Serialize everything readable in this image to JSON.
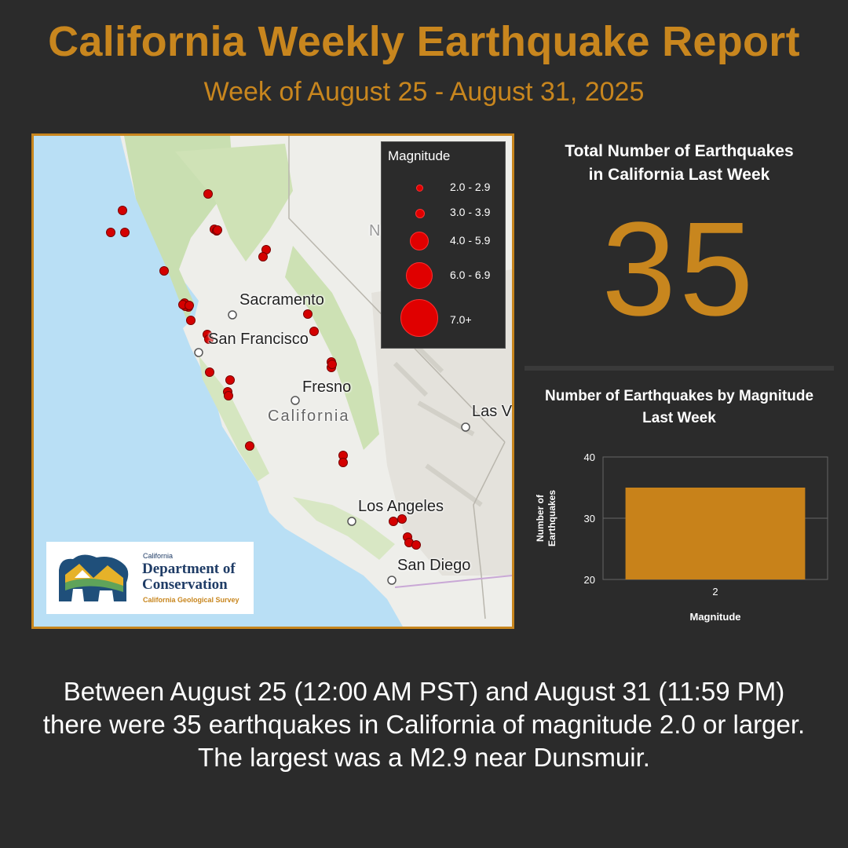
{
  "header": {
    "title": "California Weekly Earthquake Report",
    "subtitle": "Week of August 25 - August 31, 2025"
  },
  "map": {
    "places": {
      "sacramento": "Sacramento",
      "san_francisco": "San Francisco",
      "fresno": "Fresno",
      "california": "California",
      "las_vegas": "Las V",
      "los_angeles": "Los Angeles",
      "san_diego": "San Diego",
      "nevada_fragment": "N"
    },
    "legend": {
      "title": "Magnitude",
      "items": [
        "2.0 - 2.9",
        "3.0 - 3.9",
        "4.0 - 5.9",
        "6.0 - 6.9",
        "7.0+"
      ]
    },
    "quake_color": "#d40000",
    "logo": {
      "state": "California",
      "org_line1": "Department of",
      "org_line2": "Conservation",
      "division": "California Geological Survey"
    }
  },
  "stat": {
    "heading_line1": "Total Number of Earthquakes",
    "heading_line2": "in California Last Week",
    "value": "35"
  },
  "chart_heading": {
    "line1": "Number of Earthquakes by Magnitude",
    "line2": "Last Week"
  },
  "chart_data": {
    "type": "bar",
    "categories": [
      "2"
    ],
    "values": [
      35
    ],
    "xlabel": "Magnitude",
    "ylabel": "Number of Earthquakes",
    "ylim": [
      20,
      40
    ],
    "yticks": [
      20,
      30,
      40
    ],
    "grid": true,
    "bar_color": "#c8821a"
  },
  "footer": {
    "text": "Between August 25 (12:00 AM PST) and August 31 (11:59 PM) there were 35 earthquakes in California of magnitude 2.0 or larger. The largest was a M2.9 near Dunsmuir."
  },
  "colors": {
    "accent": "#c8861e",
    "background": "#2b2b2b"
  }
}
